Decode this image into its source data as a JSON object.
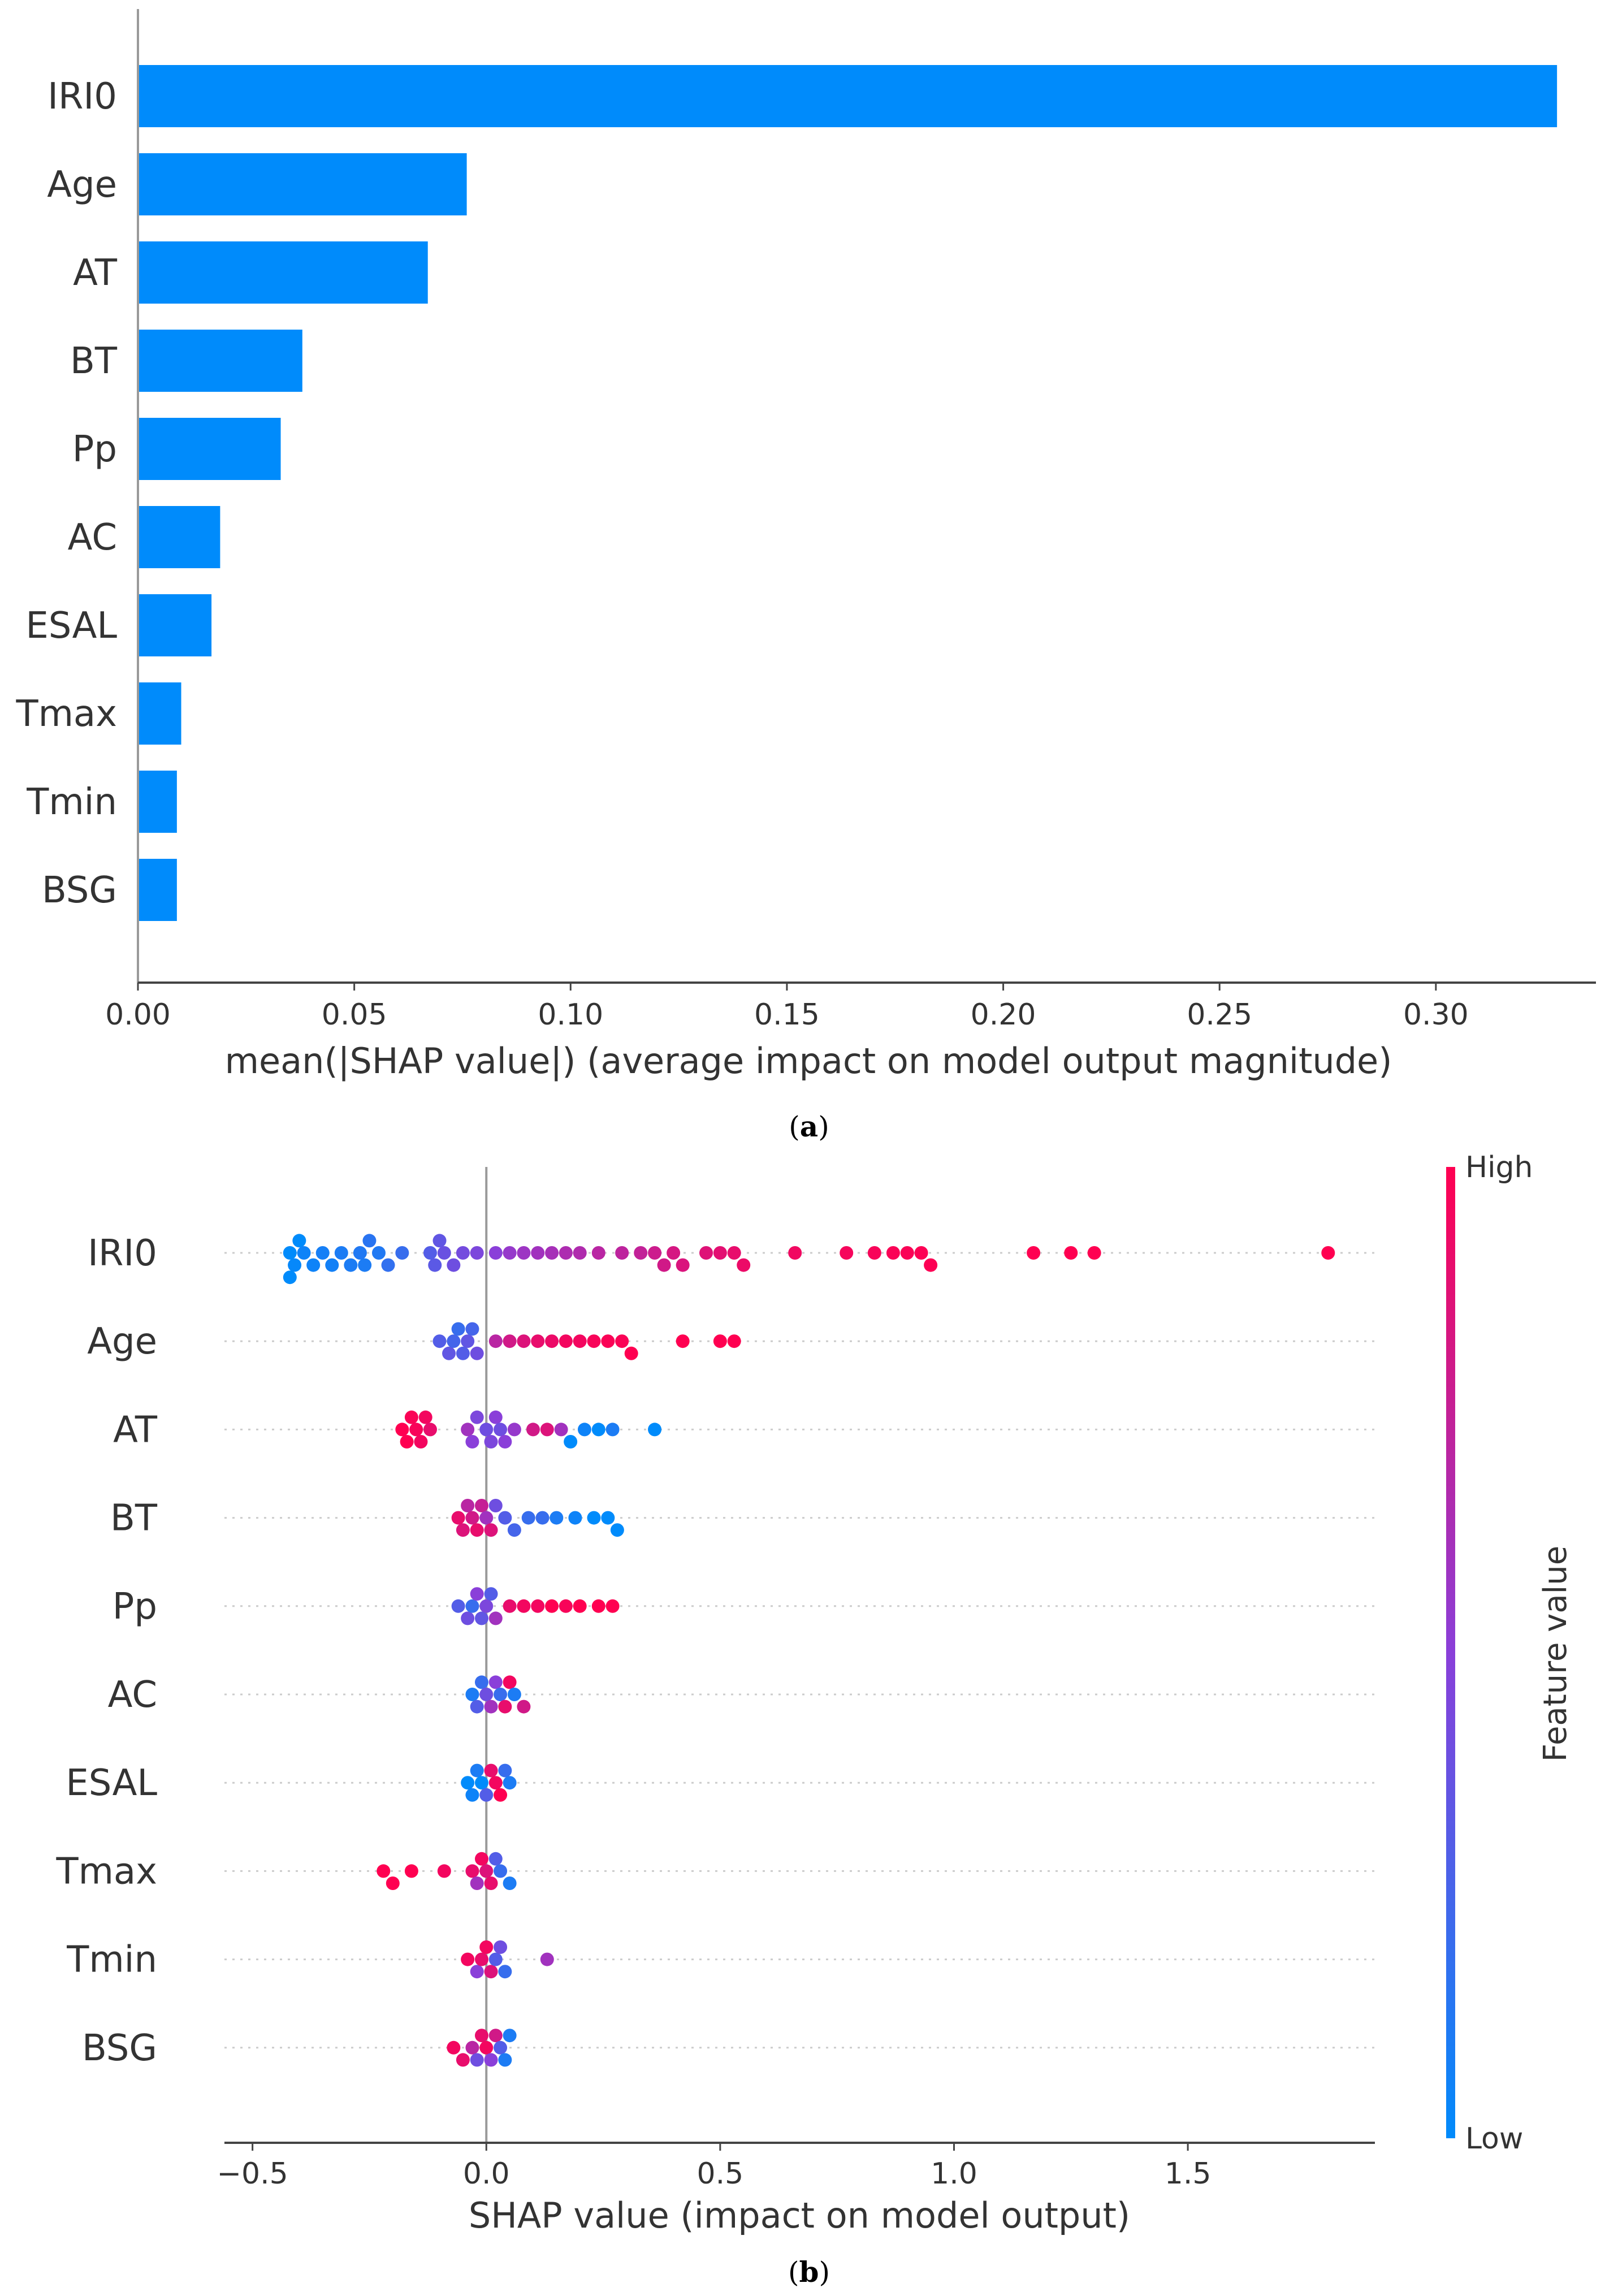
{
  "colors": {
    "bar": "#008bfb",
    "low": "#008bfb",
    "high": "#ff0051",
    "axis": "#9a9a9a",
    "text": "#333333"
  },
  "chart_data": [
    {
      "id": "a",
      "type": "bar",
      "orientation": "horizontal",
      "categories": [
        "IRI0",
        "Age",
        "AT",
        "BT",
        "Pp",
        "AC",
        "ESAL",
        "Tmax",
        "Tmin",
        "BSG"
      ],
      "values": [
        0.328,
        0.076,
        0.067,
        0.038,
        0.033,
        0.019,
        0.017,
        0.01,
        0.009,
        0.009
      ],
      "xlabel": "mean(|SHAP value|) (average impact on model output magnitude)",
      "ylabel": "",
      "xlim": [
        0,
        0.337
      ],
      "xticks": [
        0.0,
        0.05,
        0.1,
        0.15,
        0.2,
        0.25,
        0.3
      ],
      "xtick_labels": [
        "0.00",
        "0.05",
        "0.10",
        "0.15",
        "0.20",
        "0.25",
        "0.30"
      ],
      "grid": false,
      "caption_letter": "a"
    },
    {
      "id": "b",
      "type": "scatter",
      "subtype": "beeswarm",
      "categories": [
        "IRI0",
        "Age",
        "AT",
        "BT",
        "Pp",
        "AC",
        "ESAL",
        "Tmax",
        "Tmin",
        "BSG"
      ],
      "series": [
        {
          "name": "IRI0",
          "points": [
            {
              "x": -0.42,
              "v": 0.0
            },
            {
              "x": -0.42,
              "v": 0.0
            },
            {
              "x": -0.41,
              "v": 0.02
            },
            {
              "x": -0.4,
              "v": 0.0
            },
            {
              "x": -0.39,
              "v": 0.05
            },
            {
              "x": -0.37,
              "v": 0.05
            },
            {
              "x": -0.35,
              "v": 0.08
            },
            {
              "x": -0.33,
              "v": 0.07
            },
            {
              "x": -0.31,
              "v": 0.1
            },
            {
              "x": -0.29,
              "v": 0.1
            },
            {
              "x": -0.27,
              "v": 0.12
            },
            {
              "x": -0.26,
              "v": 0.1
            },
            {
              "x": -0.25,
              "v": 0.15
            },
            {
              "x": -0.23,
              "v": 0.12
            },
            {
              "x": -0.21,
              "v": 0.18
            },
            {
              "x": -0.18,
              "v": 0.2
            },
            {
              "x": -0.12,
              "v": 0.3
            },
            {
              "x": -0.11,
              "v": 0.33
            },
            {
              "x": -0.1,
              "v": 0.35
            },
            {
              "x": -0.09,
              "v": 0.38
            },
            {
              "x": -0.07,
              "v": 0.4
            },
            {
              "x": -0.05,
              "v": 0.42
            },
            {
              "x": -0.02,
              "v": 0.45
            },
            {
              "x": 0.02,
              "v": 0.5
            },
            {
              "x": 0.05,
              "v": 0.55
            },
            {
              "x": 0.08,
              "v": 0.58
            },
            {
              "x": 0.11,
              "v": 0.6
            },
            {
              "x": 0.14,
              "v": 0.62
            },
            {
              "x": 0.17,
              "v": 0.65
            },
            {
              "x": 0.2,
              "v": 0.66
            },
            {
              "x": 0.24,
              "v": 0.7
            },
            {
              "x": 0.29,
              "v": 0.72
            },
            {
              "x": 0.33,
              "v": 0.74
            },
            {
              "x": 0.36,
              "v": 0.78
            },
            {
              "x": 0.38,
              "v": 0.8
            },
            {
              "x": 0.4,
              "v": 0.82
            },
            {
              "x": 0.42,
              "v": 0.84
            },
            {
              "x": 0.47,
              "v": 0.86
            },
            {
              "x": 0.5,
              "v": 0.88
            },
            {
              "x": 0.53,
              "v": 0.9
            },
            {
              "x": 0.55,
              "v": 0.92
            },
            {
              "x": 0.66,
              "v": 0.94
            },
            {
              "x": 0.77,
              "v": 0.96
            },
            {
              "x": 0.83,
              "v": 0.97
            },
            {
              "x": 0.87,
              "v": 0.98
            },
            {
              "x": 0.9,
              "v": 0.98
            },
            {
              "x": 0.93,
              "v": 0.99
            },
            {
              "x": 0.95,
              "v": 0.99
            },
            {
              "x": 1.17,
              "v": 1.0
            },
            {
              "x": 1.25,
              "v": 1.0
            },
            {
              "x": 1.3,
              "v": 1.0
            },
            {
              "x": 1.8,
              "v": 1.0
            }
          ]
        },
        {
          "name": "Age",
          "points": [
            {
              "x": -0.1,
              "v": 0.3
            },
            {
              "x": -0.08,
              "v": 0.35
            },
            {
              "x": -0.07,
              "v": 0.25
            },
            {
              "x": -0.06,
              "v": 0.2
            },
            {
              "x": -0.05,
              "v": 0.3
            },
            {
              "x": -0.04,
              "v": 0.35
            },
            {
              "x": -0.03,
              "v": 0.25
            },
            {
              "x": -0.02,
              "v": 0.4
            },
            {
              "x": 0.02,
              "v": 0.7
            },
            {
              "x": 0.05,
              "v": 0.8
            },
            {
              "x": 0.08,
              "v": 0.85
            },
            {
              "x": 0.11,
              "v": 0.9
            },
            {
              "x": 0.14,
              "v": 0.92
            },
            {
              "x": 0.17,
              "v": 0.95
            },
            {
              "x": 0.2,
              "v": 0.95
            },
            {
              "x": 0.23,
              "v": 0.97
            },
            {
              "x": 0.26,
              "v": 0.98
            },
            {
              "x": 0.29,
              "v": 0.98
            },
            {
              "x": 0.31,
              "v": 1.0
            },
            {
              "x": 0.42,
              "v": 1.0
            },
            {
              "x": 0.5,
              "v": 1.0
            },
            {
              "x": 0.53,
              "v": 1.0
            }
          ]
        },
        {
          "name": "AT",
          "points": [
            {
              "x": -0.18,
              "v": 1.0
            },
            {
              "x": -0.17,
              "v": 1.0
            },
            {
              "x": -0.16,
              "v": 0.98
            },
            {
              "x": -0.15,
              "v": 0.97
            },
            {
              "x": -0.14,
              "v": 0.95
            },
            {
              "x": -0.13,
              "v": 0.95
            },
            {
              "x": -0.12,
              "v": 0.9
            },
            {
              "x": -0.04,
              "v": 0.6
            },
            {
              "x": -0.03,
              "v": 0.5
            },
            {
              "x": -0.02,
              "v": 0.45
            },
            {
              "x": 0.0,
              "v": 0.4
            },
            {
              "x": 0.01,
              "v": 0.45
            },
            {
              "x": 0.02,
              "v": 0.5
            },
            {
              "x": 0.03,
              "v": 0.4
            },
            {
              "x": 0.04,
              "v": 0.5
            },
            {
              "x": 0.06,
              "v": 0.55
            },
            {
              "x": 0.1,
              "v": 0.8
            },
            {
              "x": 0.13,
              "v": 0.85
            },
            {
              "x": 0.16,
              "v": 0.6
            },
            {
              "x": 0.18,
              "v": 0.0
            },
            {
              "x": 0.21,
              "v": 0.05
            },
            {
              "x": 0.24,
              "v": 0.0
            },
            {
              "x": 0.27,
              "v": 0.1
            },
            {
              "x": 0.36,
              "v": 0.0
            }
          ]
        },
        {
          "name": "BT",
          "points": [
            {
              "x": -0.06,
              "v": 0.9
            },
            {
              "x": -0.05,
              "v": 0.85
            },
            {
              "x": -0.04,
              "v": 0.7
            },
            {
              "x": -0.03,
              "v": 0.8
            },
            {
              "x": -0.02,
              "v": 0.9
            },
            {
              "x": -0.01,
              "v": 0.75
            },
            {
              "x": 0.0,
              "v": 0.6
            },
            {
              "x": 0.01,
              "v": 0.85
            },
            {
              "x": 0.02,
              "v": 0.4
            },
            {
              "x": 0.04,
              "v": 0.3
            },
            {
              "x": 0.06,
              "v": 0.25
            },
            {
              "x": 0.09,
              "v": 0.2
            },
            {
              "x": 0.12,
              "v": 0.2
            },
            {
              "x": 0.15,
              "v": 0.1
            },
            {
              "x": 0.19,
              "v": 0.05
            },
            {
              "x": 0.23,
              "v": 0.0
            },
            {
              "x": 0.26,
              "v": 0.0
            },
            {
              "x": 0.28,
              "v": 0.0
            }
          ]
        },
        {
          "name": "Pp",
          "points": [
            {
              "x": -0.06,
              "v": 0.3
            },
            {
              "x": -0.04,
              "v": 0.4
            },
            {
              "x": -0.03,
              "v": 0.2
            },
            {
              "x": -0.02,
              "v": 0.5
            },
            {
              "x": -0.01,
              "v": 0.35
            },
            {
              "x": 0.0,
              "v": 0.45
            },
            {
              "x": 0.01,
              "v": 0.3
            },
            {
              "x": 0.02,
              "v": 0.6
            },
            {
              "x": 0.05,
              "v": 0.9
            },
            {
              "x": 0.08,
              "v": 0.95
            },
            {
              "x": 0.11,
              "v": 0.95
            },
            {
              "x": 0.14,
              "v": 1.0
            },
            {
              "x": 0.17,
              "v": 0.97
            },
            {
              "x": 0.2,
              "v": 1.0
            },
            {
              "x": 0.24,
              "v": 1.0
            },
            {
              "x": 0.27,
              "v": 1.0
            }
          ]
        },
        {
          "name": "AC",
          "points": [
            {
              "x": -0.03,
              "v": 0.1
            },
            {
              "x": -0.02,
              "v": 0.3
            },
            {
              "x": -0.01,
              "v": 0.2
            },
            {
              "x": 0.0,
              "v": 0.4
            },
            {
              "x": 0.01,
              "v": 0.6
            },
            {
              "x": 0.02,
              "v": 0.5
            },
            {
              "x": 0.03,
              "v": 0.2
            },
            {
              "x": 0.04,
              "v": 0.9
            },
            {
              "x": 0.05,
              "v": 0.95
            },
            {
              "x": 0.06,
              "v": 0.1
            },
            {
              "x": 0.08,
              "v": 0.8
            }
          ]
        },
        {
          "name": "ESAL",
          "points": [
            {
              "x": -0.04,
              "v": 0.0
            },
            {
              "x": -0.03,
              "v": 0.05
            },
            {
              "x": -0.02,
              "v": 0.1
            },
            {
              "x": -0.01,
              "v": 0.0
            },
            {
              "x": 0.0,
              "v": 0.3
            },
            {
              "x": 0.01,
              "v": 0.9
            },
            {
              "x": 0.02,
              "v": 0.95
            },
            {
              "x": 0.03,
              "v": 1.0
            },
            {
              "x": 0.04,
              "v": 0.2
            },
            {
              "x": 0.05,
              "v": 0.1
            }
          ]
        },
        {
          "name": "Tmax",
          "points": [
            {
              "x": -0.22,
              "v": 1.0
            },
            {
              "x": -0.2,
              "v": 1.0
            },
            {
              "x": -0.16,
              "v": 1.0
            },
            {
              "x": -0.09,
              "v": 0.95
            },
            {
              "x": -0.03,
              "v": 0.9
            },
            {
              "x": -0.02,
              "v": 0.6
            },
            {
              "x": -0.01,
              "v": 0.95
            },
            {
              "x": 0.0,
              "v": 0.85
            },
            {
              "x": 0.01,
              "v": 0.9
            },
            {
              "x": 0.02,
              "v": 0.3
            },
            {
              "x": 0.03,
              "v": 0.2
            },
            {
              "x": 0.05,
              "v": 0.1
            }
          ]
        },
        {
          "name": "Tmin",
          "points": [
            {
              "x": -0.04,
              "v": 0.95
            },
            {
              "x": -0.02,
              "v": 0.5
            },
            {
              "x": -0.01,
              "v": 0.9
            },
            {
              "x": 0.0,
              "v": 0.95
            },
            {
              "x": 0.01,
              "v": 0.85
            },
            {
              "x": 0.02,
              "v": 0.3
            },
            {
              "x": 0.03,
              "v": 0.4
            },
            {
              "x": 0.04,
              "v": 0.2
            },
            {
              "x": 0.13,
              "v": 0.6
            }
          ]
        },
        {
          "name": "BSG",
          "points": [
            {
              "x": -0.07,
              "v": 0.95
            },
            {
              "x": -0.05,
              "v": 0.9
            },
            {
              "x": -0.03,
              "v": 0.7
            },
            {
              "x": -0.02,
              "v": 0.4
            },
            {
              "x": -0.01,
              "v": 0.9
            },
            {
              "x": 0.0,
              "v": 0.95
            },
            {
              "x": 0.01,
              "v": 0.5
            },
            {
              "x": 0.02,
              "v": 0.8
            },
            {
              "x": 0.03,
              "v": 0.3
            },
            {
              "x": 0.04,
              "v": 0.1
            },
            {
              "x": 0.05,
              "v": 0.1
            }
          ]
        }
      ],
      "xlabel": "SHAP value (impact on model output)",
      "ylabel": "",
      "xlim": [
        -0.56,
        1.9
      ],
      "xticks": [
        -0.5,
        0.0,
        0.5,
        1.0,
        1.5
      ],
      "xtick_labels": [
        "−0.5",
        "0.0",
        "0.5",
        "1.0",
        "1.5"
      ],
      "colorbar": {
        "label": "Feature value",
        "high": "High",
        "low": "Low"
      },
      "grid": true,
      "caption_letter": "b"
    }
  ]
}
